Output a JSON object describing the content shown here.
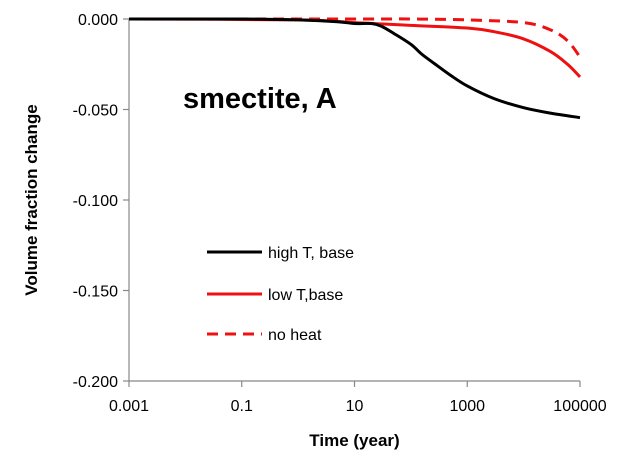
{
  "chart_data": {
    "type": "line",
    "xlabel": "Time (year)",
    "ylabel": "Volume fraction change",
    "annotation": "smectite, A",
    "x_scale": "log",
    "xlim": [
      0.001,
      100000
    ],
    "ylim": [
      -0.2,
      0.0
    ],
    "xticks": [
      "0.001",
      "0.1",
      "10",
      "1000",
      "100000"
    ],
    "yticks": [
      "0.000",
      "-0.050",
      "-0.100",
      "-0.150",
      "-0.200"
    ],
    "grid": false,
    "legend_position": "bottom-left inside",
    "series": [
      {
        "name": "high T, base",
        "color": "#000000",
        "dash": "solid",
        "x": [
          0.001,
          0.1,
          1,
          5,
          10,
          20,
          30,
          50,
          100,
          150,
          200,
          300,
          500,
          1000,
          3000,
          10000,
          30000,
          100000
        ],
        "y": [
          0.0,
          0.0,
          -0.0005,
          -0.0015,
          -0.0025,
          -0.0025,
          -0.004,
          -0.008,
          -0.014,
          -0.019,
          -0.022,
          -0.026,
          -0.031,
          -0.037,
          -0.044,
          -0.049,
          -0.052,
          -0.0545
        ]
      },
      {
        "name": "low T,base",
        "color": "#ee1111",
        "dash": "solid",
        "x": [
          0.001,
          1,
          10,
          100,
          1000,
          3000,
          10000,
          30000,
          60000,
          100000
        ],
        "y": [
          0.0,
          -0.0005,
          -0.002,
          -0.0035,
          -0.005,
          -0.007,
          -0.011,
          -0.018,
          -0.025,
          -0.032
        ]
      },
      {
        "name": "no heat",
        "color": "#ee1111",
        "dash": "dashed",
        "x": [
          0.001,
          10,
          100,
          1000,
          10000,
          30000,
          60000,
          100000
        ],
        "y": [
          0.0,
          0.0,
          0.0,
          -0.0005,
          -0.002,
          -0.006,
          -0.012,
          -0.021
        ]
      }
    ]
  }
}
